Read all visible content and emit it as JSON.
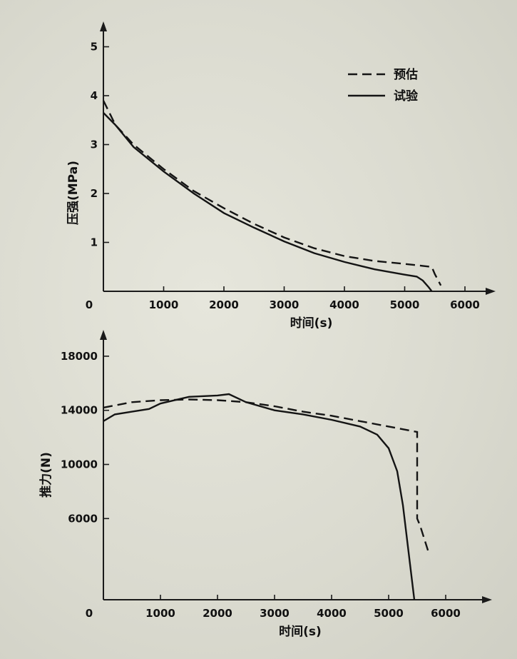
{
  "chart_data": [
    {
      "type": "line",
      "title": "",
      "xlabel": "时间(s)",
      "ylabel": "压强(MPa)",
      "xlim": [
        0,
        6500
      ],
      "ylim": [
        0,
        5.5
      ],
      "x_ticks": [
        0,
        1000,
        2000,
        3000,
        4000,
        5000,
        6000
      ],
      "x_tick_labels": [
        "0",
        "1000",
        "2000",
        "3000",
        "4000",
        "5000",
        "6000"
      ],
      "y_ticks": [
        1,
        2,
        3,
        4,
        5
      ],
      "y_tick_labels": [
        "1",
        "2",
        "3",
        "4",
        "5"
      ],
      "legend": {
        "placement": "top-right",
        "entries": [
          {
            "label": "预估",
            "style": "dashed"
          },
          {
            "label": "试验",
            "style": "solid"
          }
        ]
      },
      "series": [
        {
          "name": "预估",
          "style": "dashed",
          "x": [
            0,
            200,
            500,
            1000,
            1500,
            2000,
            2500,
            3000,
            3500,
            4000,
            4500,
            5000,
            5300,
            5450,
            5500,
            5600
          ],
          "y": [
            3.9,
            3.4,
            3.0,
            2.5,
            2.05,
            1.7,
            1.38,
            1.1,
            0.88,
            0.72,
            0.62,
            0.56,
            0.52,
            0.5,
            0.35,
            0.12
          ]
        },
        {
          "name": "试验",
          "style": "solid",
          "x": [
            0,
            200,
            500,
            1000,
            1500,
            2000,
            2500,
            3000,
            3500,
            4000,
            4500,
            5000,
            5200,
            5300,
            5400,
            5450
          ],
          "y": [
            3.65,
            3.4,
            2.95,
            2.45,
            2.0,
            1.6,
            1.3,
            1.02,
            0.78,
            0.6,
            0.45,
            0.34,
            0.3,
            0.22,
            0.08,
            0.0
          ]
        }
      ]
    },
    {
      "type": "line",
      "title": "",
      "xlabel": "时间(s)",
      "ylabel": "推力(N)",
      "xlim": [
        0,
        6500
      ],
      "ylim": [
        0,
        19500
      ],
      "x_ticks": [
        0,
        1000,
        2000,
        3000,
        4000,
        5000,
        6000
      ],
      "x_tick_labels": [
        "0",
        "1000",
        "2000",
        "3000",
        "4000",
        "5000",
        "6000"
      ],
      "y_ticks": [
        6000,
        10000,
        14000,
        18000
      ],
      "y_tick_labels": [
        "6000",
        "10000",
        "14000",
        "18000"
      ],
      "series": [
        {
          "name": "预估",
          "style": "dashed",
          "x": [
            0,
            500,
            1000,
            1500,
            2000,
            2500,
            3000,
            3500,
            4000,
            4500,
            5000,
            5500,
            5500,
            5550,
            5700
          ],
          "y": [
            14200,
            14600,
            14750,
            14800,
            14750,
            14600,
            14300,
            13900,
            13600,
            13200,
            12800,
            12400,
            6000,
            5500,
            3500
          ]
        },
        {
          "name": "试验",
          "style": "solid",
          "x": [
            0,
            200,
            500,
            800,
            1000,
            1500,
            2000,
            2200,
            2500,
            3000,
            3500,
            4000,
            4500,
            4800,
            5000,
            5150,
            5250,
            5350,
            5450
          ],
          "y": [
            13200,
            13700,
            13900,
            14100,
            14500,
            15000,
            15100,
            15200,
            14600,
            14000,
            13700,
            13300,
            12800,
            12200,
            11200,
            9500,
            7000,
            3500,
            0
          ]
        }
      ]
    }
  ]
}
